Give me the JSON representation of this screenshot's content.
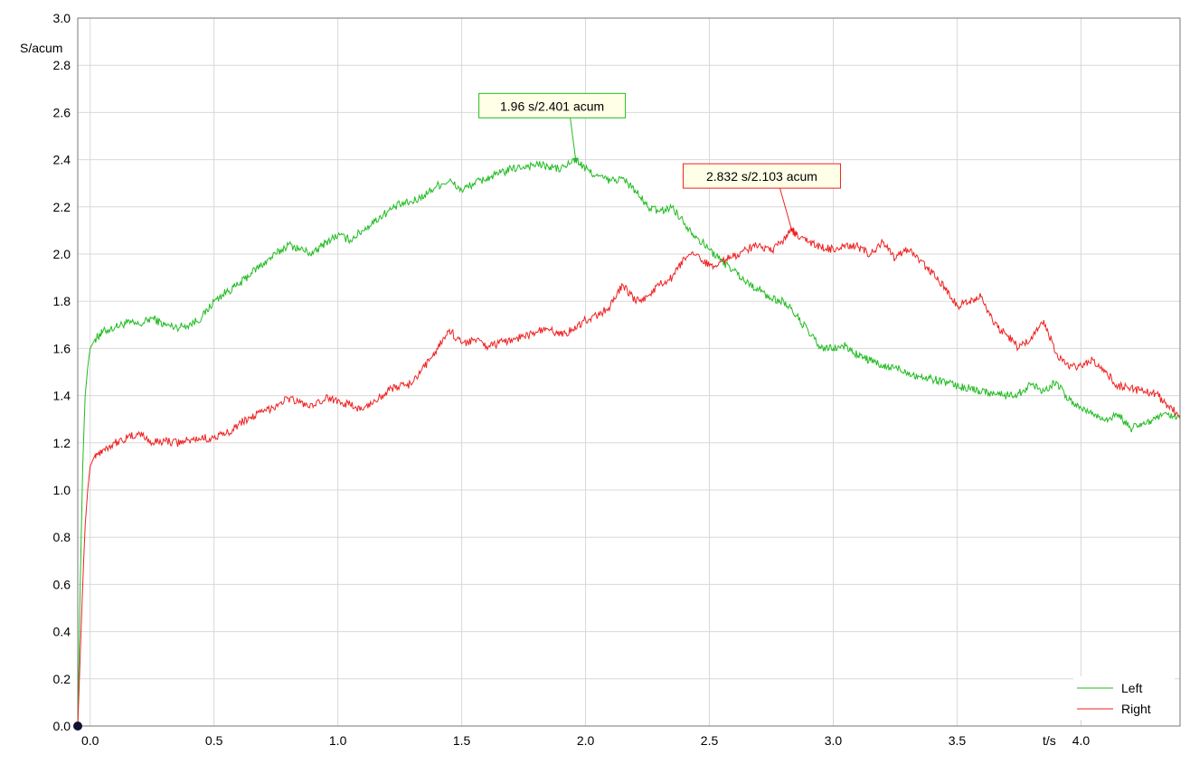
{
  "chart_data": {
    "type": "line",
    "x_unit": "t/s",
    "y_unit": "S/acum",
    "xlim": [
      -0.05,
      4.4
    ],
    "ylim": [
      0.0,
      3.0
    ],
    "x_ticks": [
      0.0,
      0.5,
      1.0,
      1.5,
      2.0,
      2.5,
      3.0,
      3.5,
      4.0
    ],
    "x_tick_labels": [
      "0.0",
      "0.5",
      "1.0",
      "1.5",
      "2.0",
      "2.5",
      "3.0",
      "3.5",
      "4.0"
    ],
    "y_ticks": [
      0.0,
      0.2,
      0.4,
      0.6,
      0.8,
      1.0,
      1.2,
      1.4,
      1.6,
      1.8,
      2.0,
      2.2,
      2.4,
      2.6,
      2.8,
      3.0
    ],
    "y_tick_labels": [
      "0.0",
      "0.2",
      "0.4",
      "0.6",
      "0.8",
      "1.0",
      "1.2",
      "1.4",
      "1.6",
      "1.8",
      "2.0",
      "2.2",
      "2.4",
      "2.6",
      "2.8",
      "3.0"
    ],
    "grid": true,
    "legend_position": "bottom-right",
    "origin_marker": {
      "x": -0.05,
      "y": 0.0
    },
    "series": [
      {
        "name": "Left",
        "color": "#22bb22",
        "x": [
          -0.05,
          -0.04,
          -0.03,
          -0.02,
          -0.01,
          0.0,
          0.02,
          0.05,
          0.1,
          0.15,
          0.2,
          0.25,
          0.3,
          0.35,
          0.4,
          0.45,
          0.5,
          0.55,
          0.6,
          0.65,
          0.7,
          0.75,
          0.8,
          0.85,
          0.9,
          0.95,
          1.0,
          1.05,
          1.1,
          1.15,
          1.2,
          1.25,
          1.3,
          1.35,
          1.4,
          1.45,
          1.5,
          1.55,
          1.6,
          1.65,
          1.7,
          1.75,
          1.8,
          1.85,
          1.9,
          1.96,
          2.0,
          2.05,
          2.1,
          2.15,
          2.2,
          2.25,
          2.3,
          2.35,
          2.4,
          2.45,
          2.5,
          2.55,
          2.6,
          2.65,
          2.7,
          2.75,
          2.8,
          2.85,
          2.9,
          2.95,
          3.0,
          3.05,
          3.1,
          3.15,
          3.2,
          3.25,
          3.3,
          3.35,
          3.4,
          3.45,
          3.5,
          3.55,
          3.6,
          3.65,
          3.7,
          3.75,
          3.8,
          3.85,
          3.9,
          3.95,
          4.0,
          4.05,
          4.1,
          4.15,
          4.2,
          4.25,
          4.3,
          4.35,
          4.4
        ],
        "y": [
          0.0,
          0.6,
          1.1,
          1.4,
          1.52,
          1.6,
          1.64,
          1.67,
          1.69,
          1.71,
          1.7,
          1.73,
          1.7,
          1.69,
          1.7,
          1.73,
          1.8,
          1.84,
          1.87,
          1.92,
          1.96,
          2.0,
          2.04,
          2.02,
          2.0,
          2.05,
          2.08,
          2.06,
          2.1,
          2.14,
          2.18,
          2.21,
          2.22,
          2.25,
          2.29,
          2.31,
          2.27,
          2.3,
          2.32,
          2.34,
          2.36,
          2.37,
          2.38,
          2.37,
          2.36,
          2.401,
          2.36,
          2.33,
          2.31,
          2.32,
          2.27,
          2.2,
          2.18,
          2.2,
          2.13,
          2.07,
          2.02,
          1.97,
          1.93,
          1.88,
          1.85,
          1.81,
          1.8,
          1.74,
          1.67,
          1.6,
          1.6,
          1.61,
          1.57,
          1.55,
          1.52,
          1.52,
          1.5,
          1.48,
          1.47,
          1.46,
          1.44,
          1.43,
          1.42,
          1.41,
          1.4,
          1.41,
          1.45,
          1.42,
          1.46,
          1.38,
          1.35,
          1.32,
          1.3,
          1.32,
          1.26,
          1.28,
          1.3,
          1.32,
          1.3
        ]
      },
      {
        "name": "Right",
        "color": "#ee2222",
        "x": [
          -0.05,
          -0.04,
          -0.03,
          -0.02,
          -0.01,
          0.0,
          0.02,
          0.05,
          0.1,
          0.15,
          0.2,
          0.25,
          0.3,
          0.35,
          0.4,
          0.45,
          0.5,
          0.55,
          0.6,
          0.65,
          0.7,
          0.75,
          0.8,
          0.85,
          0.9,
          0.95,
          1.0,
          1.05,
          1.1,
          1.15,
          1.2,
          1.25,
          1.3,
          1.35,
          1.4,
          1.45,
          1.5,
          1.55,
          1.6,
          1.65,
          1.7,
          1.75,
          1.8,
          1.85,
          1.9,
          1.95,
          2.0,
          2.05,
          2.1,
          2.15,
          2.2,
          2.25,
          2.3,
          2.35,
          2.4,
          2.45,
          2.5,
          2.55,
          2.6,
          2.65,
          2.7,
          2.75,
          2.8,
          2.832,
          2.85,
          2.9,
          2.95,
          3.0,
          3.05,
          3.1,
          3.15,
          3.2,
          3.25,
          3.3,
          3.35,
          3.4,
          3.45,
          3.5,
          3.55,
          3.6,
          3.65,
          3.7,
          3.75,
          3.8,
          3.85,
          3.9,
          3.95,
          4.0,
          4.05,
          4.1,
          4.15,
          4.2,
          4.25,
          4.3,
          4.35,
          4.4
        ],
        "y": [
          0.0,
          0.3,
          0.6,
          0.85,
          1.0,
          1.1,
          1.15,
          1.17,
          1.2,
          1.22,
          1.24,
          1.2,
          1.21,
          1.2,
          1.21,
          1.22,
          1.22,
          1.24,
          1.28,
          1.31,
          1.33,
          1.36,
          1.39,
          1.37,
          1.35,
          1.39,
          1.38,
          1.36,
          1.34,
          1.38,
          1.42,
          1.44,
          1.45,
          1.52,
          1.6,
          1.68,
          1.62,
          1.64,
          1.61,
          1.62,
          1.64,
          1.65,
          1.67,
          1.68,
          1.66,
          1.68,
          1.72,
          1.74,
          1.78,
          1.87,
          1.8,
          1.82,
          1.87,
          1.9,
          1.98,
          2.0,
          1.95,
          1.97,
          1.99,
          2.02,
          2.04,
          2.01,
          2.06,
          2.103,
          2.08,
          2.05,
          2.03,
          2.02,
          2.04,
          2.03,
          2.0,
          2.05,
          1.98,
          2.02,
          1.97,
          1.92,
          1.86,
          1.78,
          1.8,
          1.82,
          1.7,
          1.66,
          1.6,
          1.65,
          1.72,
          1.58,
          1.52,
          1.53,
          1.55,
          1.5,
          1.44,
          1.43,
          1.42,
          1.41,
          1.36,
          1.31
        ]
      }
    ],
    "annotations": [
      {
        "text": "1.96 s/2.401 acum",
        "x": 1.96,
        "y": 2.401,
        "series": "Left",
        "border_color": "#22bb22",
        "bg_color": "#ffffe8"
      },
      {
        "text": "2.832 s/2.103 acum",
        "x": 2.832,
        "y": 2.103,
        "series": "Right",
        "border_color": "#ee2222",
        "bg_color": "#ffffe8"
      }
    ],
    "legend": [
      {
        "label": "Left",
        "color": "#22bb22"
      },
      {
        "label": "Right",
        "color": "#ee2222"
      }
    ]
  }
}
